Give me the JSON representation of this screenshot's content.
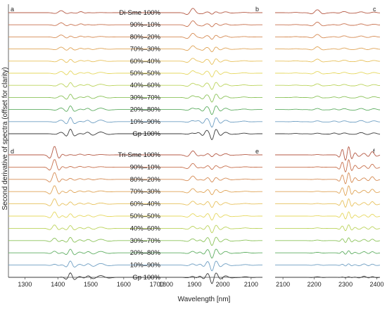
{
  "figure": {
    "ylabel": "Second derivative of spectra (offset for clarity)",
    "xlabel": "Wavelength [nm]"
  },
  "colors": [
    "#b55a45",
    "#c8724f",
    "#d68c55",
    "#e0a558",
    "#e8c25e",
    "#e6d860",
    "#bcd45d",
    "#8cc35b",
    "#5fae62",
    "#6f9fc3",
    "#3a3a3a"
  ],
  "chart_data": [
    {
      "type": "line",
      "panel": "a",
      "xlim": [
        1250,
        1720
      ],
      "ticks": [
        1300,
        1400,
        1500,
        1600,
        1700
      ],
      "legend_position": "top-right",
      "series": [
        {
          "name": "Di-Sme 100%"
        },
        {
          "name": "90%–10%"
        },
        {
          "name": "80%–20%"
        },
        {
          "name": "70%–30%"
        },
        {
          "name": "60%–40%"
        },
        {
          "name": "50%–50%"
        },
        {
          "name": "40%–60%"
        },
        {
          "name": "30%–70%"
        },
        {
          "name": "20%–80%"
        },
        {
          "name": "10%–90%"
        },
        {
          "name": "Gp 100%"
        }
      ],
      "features": [
        {
          "x": 1410,
          "w": 9,
          "a0": 7,
          "a1": 5
        },
        {
          "x": 1438,
          "w": 6,
          "a0": 1,
          "a1": 17
        },
        {
          "x": 1470,
          "w": 7,
          "a0": 4,
          "a1": 3
        },
        {
          "x": 1490,
          "w": 8,
          "a0": 1,
          "a1": 7
        },
        {
          "x": 1530,
          "w": 12,
          "a0": 0.5,
          "a1": 6
        }
      ]
    },
    {
      "type": "line",
      "panel": "b",
      "xlim": [
        1790,
        2140
      ],
      "ticks": [
        1800,
        1900,
        2000,
        2100
      ],
      "series_count": 11,
      "features": [
        {
          "x": 1895,
          "w": 10,
          "a0": 16,
          "a1": 4
        },
        {
          "x": 1915,
          "w": 8,
          "a0": 3,
          "a1": 6
        },
        {
          "x": 1942,
          "w": 7,
          "a0": 2,
          "a1": 10
        },
        {
          "x": 1962,
          "w": 6,
          "a0": -4,
          "a1": -14
        },
        {
          "x": 1978,
          "w": 7,
          "a0": 2,
          "a1": 11
        },
        {
          "x": 2010,
          "w": 10,
          "a0": 3,
          "a1": 5
        },
        {
          "x": 2075,
          "w": 12,
          "a0": 1,
          "a1": 2
        }
      ]
    },
    {
      "type": "line",
      "panel": "c",
      "xlim": [
        2075,
        2410
      ],
      "ticks": [
        2100,
        2200,
        2300,
        2400
      ],
      "series_count": 11,
      "features": [
        {
          "x": 2140,
          "w": 10,
          "a0": 1,
          "a1": 1
        },
        {
          "x": 2210,
          "w": 9,
          "a0": 10,
          "a1": 2
        },
        {
          "x": 2265,
          "w": 9,
          "a0": 1,
          "a1": 3
        },
        {
          "x": 2295,
          "w": 10,
          "a0": 4,
          "a1": 3
        },
        {
          "x": 2350,
          "w": 10,
          "a0": 3,
          "a1": 4
        },
        {
          "x": 2390,
          "w": 10,
          "a0": 2,
          "a1": 3
        }
      ]
    },
    {
      "type": "line",
      "panel": "d",
      "xlim": [
        1250,
        1720
      ],
      "ticks": [
        1300,
        1400,
        1500,
        1600,
        1700
      ],
      "legend_position": "top-right",
      "series": [
        {
          "name": "Tri-Sme 100%"
        },
        {
          "name": "90%–10%"
        },
        {
          "name": "80%–20%"
        },
        {
          "name": "70%–30%"
        },
        {
          "name": "60%–40%"
        },
        {
          "name": "50%–50%"
        },
        {
          "name": "40%–60%"
        },
        {
          "name": "30%–70%"
        },
        {
          "name": "20%–80%"
        },
        {
          "name": "10%–90%"
        },
        {
          "name": "Gp 100%"
        }
      ],
      "features": [
        {
          "x": 1390,
          "w": 7,
          "a0": 30,
          "a1": 0
        },
        {
          "x": 1412,
          "w": 6,
          "a0": 6,
          "a1": 1
        },
        {
          "x": 1438,
          "w": 6,
          "a0": 1,
          "a1": 16
        },
        {
          "x": 1468,
          "w": 8,
          "a0": 3,
          "a1": 4
        },
        {
          "x": 1492,
          "w": 8,
          "a0": 2,
          "a1": 7
        },
        {
          "x": 1530,
          "w": 12,
          "a0": 1,
          "a1": 6
        }
      ]
    },
    {
      "type": "line",
      "panel": "e",
      "xlim": [
        1790,
        2140
      ],
      "ticks": [
        1800,
        1900,
        2000,
        2100
      ],
      "series_count": 11,
      "features": [
        {
          "x": 1895,
          "w": 10,
          "a0": 14,
          "a1": 4
        },
        {
          "x": 1920,
          "w": 8,
          "a0": 3,
          "a1": 6
        },
        {
          "x": 1945,
          "w": 7,
          "a0": 3,
          "a1": 10
        },
        {
          "x": 1962,
          "w": 6,
          "a0": -4,
          "a1": -14
        },
        {
          "x": 1978,
          "w": 7,
          "a0": 3,
          "a1": 11
        },
        {
          "x": 2010,
          "w": 10,
          "a0": 4,
          "a1": 5
        },
        {
          "x": 2080,
          "w": 12,
          "a0": 1,
          "a1": 2
        }
      ]
    },
    {
      "type": "line",
      "panel": "f",
      "xlim": [
        2075,
        2410
      ],
      "ticks": [
        2100,
        2200,
        2300,
        2400
      ],
      "series_count": 11,
      "features": [
        {
          "x": 2210,
          "w": 9,
          "a0": 1,
          "a1": 2
        },
        {
          "x": 2290,
          "w": 5,
          "a0": 20,
          "a1": 1
        },
        {
          "x": 2310,
          "w": 5,
          "a0": 30,
          "a1": 2
        },
        {
          "x": 2330,
          "w": 6,
          "a0": 8,
          "a1": 1
        },
        {
          "x": 2360,
          "w": 8,
          "a0": 6,
          "a1": 4
        },
        {
          "x": 2385,
          "w": 7,
          "a0": 12,
          "a1": 3
        }
      ]
    }
  ]
}
